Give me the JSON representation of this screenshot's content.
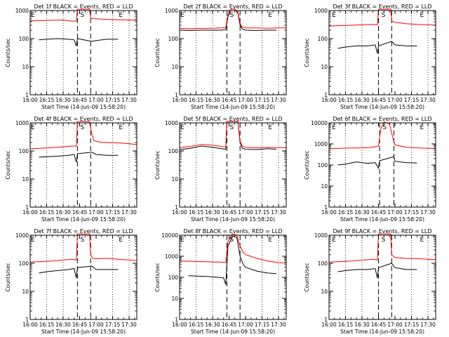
{
  "figure": {
    "x_title": "Start Time (14-Jun-09 15:58:20)",
    "y_title": "Counts/sec",
    "x_tick_labels": [
      "16:00",
      "16:15",
      "16:30",
      "16:45",
      "17:00",
      "17:15",
      "17:30"
    ],
    "colors": {
      "events": "#000000",
      "lld": "#ff0000",
      "axes": "#000000",
      "background": "#ffffff"
    }
  },
  "chart_data": [
    {
      "type": "line",
      "panel": 1,
      "title": "Det 1f BLACK = Events, RED = LLD",
      "yscale": "log",
      "ylim": [
        1,
        1000
      ],
      "y_tick_labels": [
        "1",
        "10",
        "100",
        "1000"
      ],
      "xlim": [
        "16:00",
        "17:37"
      ],
      "dotted_lines": [
        "16:15",
        "16:30",
        "17:15",
        "17:30"
      ],
      "dashed_lines": [
        "16:43",
        "16:55"
      ],
      "markers": [
        {
          "label": "E",
          "x": "16:00"
        },
        {
          "label": "S",
          "x": "16:45"
        },
        {
          "label": "E",
          "x": "17:20"
        }
      ],
      "series": [
        {
          "name": "Events",
          "color": "#000000",
          "x": [
            "16:08",
            "16:15",
            "16:25",
            "16:35",
            "16:40",
            "16:42",
            "16:43",
            "16:56",
            "17:00",
            "17:10",
            "17:20"
          ],
          "y": [
            90,
            95,
            100,
            95,
            90,
            55,
            100,
            80,
            85,
            95,
            95
          ]
        },
        {
          "name": "LLD",
          "color": "#ff0000",
          "x": [
            "16:00",
            "16:10",
            "16:20",
            "16:30",
            "16:38",
            "16:42",
            "16:43",
            "16:47",
            "16:54",
            "16:55",
            "16:56",
            "17:00",
            "17:10",
            "17:20",
            "17:30",
            "17:37"
          ],
          "y": [
            430,
            440,
            450,
            460,
            420,
            420,
            1100,
            1100,
            1100,
            540,
            520,
            510,
            480,
            470,
            460,
            455
          ]
        }
      ]
    },
    {
      "type": "line",
      "panel": 2,
      "title": "Det 2f BLACK = Events, RED = LLD",
      "yscale": "log",
      "ylim": [
        1,
        1000
      ],
      "y_tick_labels": [
        "1",
        "10",
        "100",
        "1000"
      ],
      "xlim": [
        "16:00",
        "17:37"
      ],
      "dotted_lines": [
        "16:15",
        "16:30",
        "17:15",
        "17:30"
      ],
      "dashed_lines": [
        "16:43",
        "16:55"
      ],
      "markers": [
        {
          "label": "E",
          "x": "16:00"
        },
        {
          "label": "S",
          "x": "16:45"
        },
        {
          "label": "E",
          "x": "17:20"
        }
      ],
      "series": [
        {
          "name": "Events",
          "color": "#000000",
          "x": [
            "16:00",
            "16:10",
            "16:20",
            "16:30",
            "16:38",
            "16:42",
            "16:44",
            "16:47",
            "16:50",
            "16:53",
            "16:55",
            "16:57",
            "17:00",
            "17:10",
            "17:20",
            "17:28"
          ],
          "y": [
            200,
            195,
            200,
            200,
            200,
            210,
            600,
            1150,
            1150,
            800,
            300,
            220,
            200,
            195,
            200,
            200
          ]
        },
        {
          "name": "LLD",
          "color": "#ff0000",
          "x": [
            "16:00",
            "16:10",
            "16:20",
            "16:30",
            "16:38",
            "16:42",
            "16:44",
            "16:47",
            "16:50",
            "16:53",
            "16:55",
            "16:57",
            "17:00",
            "17:10",
            "17:20",
            "17:30",
            "17:37"
          ],
          "y": [
            230,
            225,
            230,
            235,
            240,
            250,
            700,
            1200,
            1200,
            900,
            350,
            260,
            240,
            240,
            235,
            240,
            240
          ]
        }
      ]
    },
    {
      "type": "line",
      "panel": 3,
      "title": "Det 3f BLACK = Events, RED = LLD",
      "yscale": "log",
      "ylim": [
        1,
        1000
      ],
      "y_tick_labels": [
        "1",
        "10",
        "100",
        "1000"
      ],
      "xlim": [
        "16:00",
        "17:37"
      ],
      "dotted_lines": [
        "16:15",
        "16:30",
        "17:15",
        "17:30"
      ],
      "dashed_lines": [
        "16:45",
        "16:57"
      ],
      "markers": [
        {
          "label": "E",
          "x": "16:02"
        },
        {
          "label": "S",
          "x": "16:47"
        },
        {
          "label": "E",
          "x": "17:22"
        }
      ],
      "series": [
        {
          "name": "Events",
          "color": "#000000",
          "x": [
            "16:08",
            "16:15",
            "16:25",
            "16:35",
            "16:42",
            "16:44",
            "16:45",
            "16:57",
            "17:00",
            "17:10",
            "17:20"
          ],
          "y": [
            45,
            50,
            55,
            55,
            60,
            30,
            55,
            80,
            60,
            55,
            55
          ]
        },
        {
          "name": "LLD",
          "color": "#ff0000",
          "x": [
            "16:00",
            "16:10",
            "16:20",
            "16:30",
            "16:40",
            "16:44",
            "16:45",
            "16:50",
            "16:56",
            "16:57",
            "17:00",
            "17:10",
            "17:20",
            "17:30",
            "17:37"
          ],
          "y": [
            280,
            290,
            300,
            310,
            320,
            310,
            1100,
            1100,
            1100,
            420,
            380,
            340,
            320,
            310,
            300
          ]
        }
      ]
    },
    {
      "type": "line",
      "panel": 4,
      "title": "Det 4f BLACK = Events, RED = LLD",
      "yscale": "log",
      "ylim": [
        1,
        1000
      ],
      "y_tick_labels": [
        "1",
        "10",
        "100",
        "1000"
      ],
      "xlim": [
        "16:00",
        "17:37"
      ],
      "dotted_lines": [
        "16:15",
        "16:30",
        "17:15",
        "17:30"
      ],
      "dashed_lines": [
        "16:43",
        "16:55"
      ],
      "markers": [
        {
          "label": "E",
          "x": "16:00"
        },
        {
          "label": "S",
          "x": "16:45"
        },
        {
          "label": "E",
          "x": "17:20"
        }
      ],
      "series": [
        {
          "name": "Events",
          "color": "#000000",
          "x": [
            "16:08",
            "16:15",
            "16:25",
            "16:35",
            "16:40",
            "16:42",
            "16:43",
            "16:56",
            "17:00",
            "17:10",
            "17:20"
          ],
          "y": [
            60,
            62,
            65,
            70,
            75,
            40,
            80,
            90,
            75,
            70,
            70
          ]
        },
        {
          "name": "LLD",
          "color": "#ff0000",
          "x": [
            "16:00",
            "16:10",
            "16:20",
            "16:30",
            "16:38",
            "16:42",
            "16:43",
            "16:47",
            "16:54",
            "16:56",
            "16:58",
            "17:05",
            "17:10",
            "17:20",
            "17:30",
            "17:37"
          ],
          "y": [
            120,
            125,
            130,
            140,
            150,
            150,
            1100,
            1100,
            1100,
            400,
            230,
            200,
            200,
            195,
            180,
            170
          ]
        }
      ]
    },
    {
      "type": "line",
      "panel": 5,
      "title": "Det 5f BLACK = Events, RED = LLD",
      "yscale": "log",
      "ylim": [
        1,
        1000
      ],
      "y_tick_labels": [
        "1",
        "10",
        "100",
        "1000"
      ],
      "xlim": [
        "16:00",
        "17:37"
      ],
      "dotted_lines": [
        "16:15",
        "16:30",
        "17:15",
        "17:30"
      ],
      "dashed_lines": [
        "16:43",
        "16:55"
      ],
      "markers": [
        {
          "label": "E",
          "x": "16:00"
        },
        {
          "label": "S",
          "x": "16:45"
        },
        {
          "label": "E",
          "x": "17:20"
        }
      ],
      "series": [
        {
          "name": "Events",
          "color": "#000000",
          "x": [
            "16:00",
            "16:10",
            "16:20",
            "16:30",
            "16:38",
            "16:42",
            "16:43",
            "16:47",
            "16:53",
            "16:55",
            "16:57",
            "17:00",
            "17:10",
            "17:20",
            "17:28"
          ],
          "y": [
            110,
            125,
            150,
            135,
            120,
            115,
            1100,
            1100,
            1100,
            200,
            125,
            115,
            112,
            120,
            115
          ]
        },
        {
          "name": "LLD",
          "color": "#ff0000",
          "x": [
            "16:00",
            "16:10",
            "16:20",
            "16:30",
            "16:38",
            "16:42",
            "16:43",
            "16:47",
            "16:53",
            "16:55",
            "16:57",
            "17:00",
            "17:10",
            "17:20",
            "17:30",
            "17:37"
          ],
          "y": [
            130,
            145,
            170,
            160,
            145,
            140,
            1150,
            1150,
            1150,
            220,
            150,
            135,
            130,
            135,
            130,
            130
          ]
        }
      ]
    },
    {
      "type": "line",
      "panel": 6,
      "title": "Det 6f BLACK = Events, RED = LLD",
      "yscale": "log",
      "ylim": [
        1,
        10000
      ],
      "y_tick_labels": [
        "1",
        "10",
        "100",
        "1000",
        "10000"
      ],
      "xlim": [
        "16:00",
        "17:37"
      ],
      "dotted_lines": [
        "16:15",
        "16:30",
        "17:15",
        "17:30"
      ],
      "dashed_lines": [
        "16:46",
        "16:59"
      ],
      "markers": [
        {
          "label": "E",
          "x": "16:02"
        },
        {
          "label": "S",
          "x": "16:48"
        },
        {
          "label": "E",
          "x": "17:22"
        }
      ],
      "series": [
        {
          "name": "Events",
          "color": "#000000",
          "x": [
            "16:08",
            "16:15",
            "16:25",
            "16:35",
            "16:42",
            "16:45",
            "16:46",
            "16:59",
            "17:00",
            "17:10",
            "17:20"
          ],
          "y": [
            100,
            110,
            140,
            120,
            130,
            70,
            160,
            250,
            150,
            130,
            125
          ]
        },
        {
          "name": "LLD",
          "color": "#ff0000",
          "x": [
            "16:00",
            "16:10",
            "16:20",
            "16:30",
            "16:40",
            "16:45",
            "16:47",
            "16:50",
            "16:55",
            "16:58",
            "17:00",
            "17:10",
            "17:20",
            "17:30",
            "17:37"
          ],
          "y": [
            600,
            620,
            640,
            650,
            700,
            800,
            5000,
            11000,
            9000,
            2000,
            900,
            700,
            650,
            620,
            600
          ]
        }
      ]
    },
    {
      "type": "line",
      "panel": 7,
      "title": "Det 7f BLACK = Events, RED = LLD",
      "yscale": "log",
      "ylim": [
        1,
        1000
      ],
      "y_tick_labels": [
        "1",
        "10",
        "100",
        "1000"
      ],
      "xlim": [
        "16:00",
        "17:37"
      ],
      "dotted_lines": [
        "16:15",
        "16:30",
        "17:15",
        "17:30"
      ],
      "dashed_lines": [
        "16:43",
        "16:55"
      ],
      "markers": [
        {
          "label": "E",
          "x": "16:00"
        },
        {
          "label": "S",
          "x": "16:45"
        },
        {
          "label": "E",
          "x": "17:20"
        }
      ],
      "series": [
        {
          "name": "Events",
          "color": "#000000",
          "x": [
            "16:08",
            "16:15",
            "16:25",
            "16:35",
            "16:40",
            "16:42",
            "16:43",
            "16:56",
            "17:00",
            "17:10",
            "17:20"
          ],
          "y": [
            45,
            50,
            55,
            60,
            65,
            30,
            70,
            80,
            60,
            60,
            60
          ]
        },
        {
          "name": "LLD",
          "color": "#ff0000",
          "x": [
            "16:00",
            "16:10",
            "16:20",
            "16:30",
            "16:38",
            "16:42",
            "16:43",
            "16:47",
            "16:54",
            "16:55",
            "16:57",
            "17:00",
            "17:10",
            "17:20",
            "17:30",
            "17:37"
          ],
          "y": [
            110,
            115,
            120,
            130,
            140,
            130,
            1100,
            1100,
            1100,
            200,
            150,
            145,
            150,
            140,
            130,
            125
          ]
        }
      ]
    },
    {
      "type": "line",
      "panel": 8,
      "title": "Det 8f BLACK = Events, RED = LLD",
      "yscale": "log",
      "ylim": [
        1,
        10000
      ],
      "y_tick_labels": [
        "1",
        "10",
        "100",
        "1000",
        "10000"
      ],
      "xlim": [
        "16:00",
        "17:37"
      ],
      "dotted_lines": [
        "16:15",
        "16:30",
        "17:15",
        "17:30"
      ],
      "dashed_lines": [
        "16:43",
        "16:55"
      ],
      "markers": [
        {
          "label": "E",
          "x": "16:00"
        },
        {
          "label": "S",
          "x": "16:45"
        },
        {
          "label": "E",
          "x": "17:20"
        }
      ],
      "series": [
        {
          "name": "Events",
          "color": "#000000",
          "x": [
            "16:08",
            "16:15",
            "16:25",
            "16:35",
            "16:40",
            "16:42",
            "16:44",
            "16:48",
            "16:52",
            "16:55",
            "16:58",
            "17:00",
            "17:10",
            "17:20",
            "17:28"
          ],
          "y": [
            120,
            115,
            110,
            100,
            95,
            45,
            3000,
            9000,
            8000,
            1000,
            400,
            300,
            200,
            160,
            150
          ]
        },
        {
          "name": "LLD",
          "color": "#ff0000",
          "x": [
            "16:00",
            "16:10",
            "16:20",
            "16:30",
            "16:38",
            "16:42",
            "16:44",
            "16:48",
            "16:52",
            "16:55",
            "16:58",
            "17:00",
            "17:10",
            "17:20",
            "17:30",
            "17:37"
          ],
          "y": [
            600,
            580,
            560,
            540,
            520,
            500,
            5000,
            12000,
            10000,
            3000,
            1500,
            1200,
            800,
            600,
            500,
            480
          ]
        }
      ]
    },
    {
      "type": "line",
      "panel": 9,
      "title": "Det 9f BLACK = Events, RED = LLD",
      "yscale": "log",
      "ylim": [
        1,
        1000
      ],
      "y_tick_labels": [
        "1",
        "10",
        "100",
        "1000"
      ],
      "xlim": [
        "16:00",
        "17:37"
      ],
      "dotted_lines": [
        "16:15",
        "16:30",
        "17:15",
        "17:30"
      ],
      "dashed_lines": [
        "16:45",
        "16:57"
      ],
      "markers": [
        {
          "label": "E",
          "x": "16:02"
        },
        {
          "label": "S",
          "x": "16:47"
        },
        {
          "label": "E",
          "x": "17:22"
        }
      ],
      "series": [
        {
          "name": "Events",
          "color": "#000000",
          "x": [
            "16:08",
            "16:15",
            "16:25",
            "16:35",
            "16:42",
            "16:44",
            "16:45",
            "16:57",
            "17:00",
            "17:10",
            "17:20"
          ],
          "y": [
            50,
            55,
            60,
            60,
            65,
            30,
            70,
            100,
            70,
            60,
            60
          ]
        },
        {
          "name": "LLD",
          "color": "#ff0000",
          "x": [
            "16:00",
            "16:10",
            "16:20",
            "16:30",
            "16:40",
            "16:44",
            "16:45",
            "16:50",
            "16:56",
            "16:57",
            "17:00",
            "17:10",
            "17:20",
            "17:30",
            "17:37"
          ],
          "y": [
            110,
            115,
            120,
            130,
            140,
            130,
            1100,
            1100,
            1100,
            200,
            160,
            150,
            145,
            140,
            135
          ]
        }
      ]
    }
  ]
}
